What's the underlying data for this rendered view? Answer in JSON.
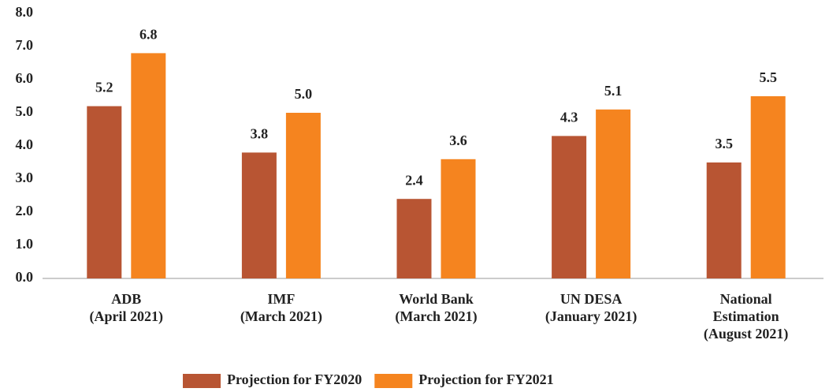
{
  "chart_data": {
    "type": "bar",
    "categories": [
      "ADB\n(April 2021)",
      "IMF\n(March 2021)",
      "World Bank\n(March 2021)",
      "UN DESA\n(January 2021)",
      "National\nEstimation\n(August 2021)"
    ],
    "series": [
      {
        "name": "Projection for FY2020",
        "color": "#b85533",
        "values": [
          5.2,
          3.8,
          2.4,
          4.3,
          3.5
        ],
        "value_labels": [
          "5.2",
          "3.8",
          "2.4",
          "4.3",
          "3.5"
        ]
      },
      {
        "name": "Projection for FY2021",
        "color": "#f5841f",
        "values": [
          6.8,
          5.0,
          3.6,
          5.1,
          5.5
        ],
        "value_labels": [
          "6.8",
          "5.0",
          "3.6",
          "5.1",
          "5.5"
        ]
      }
    ],
    "ylim": [
      0,
      8
    ],
    "yticks": [
      {
        "value": 0,
        "label": "0.0"
      },
      {
        "value": 1,
        "label": "1.0"
      },
      {
        "value": 2,
        "label": "2.0"
      },
      {
        "value": 3,
        "label": "3.0"
      },
      {
        "value": 4,
        "label": "4.0"
      },
      {
        "value": 5,
        "label": "5.0"
      },
      {
        "value": 6,
        "label": "6.0"
      },
      {
        "value": 7,
        "label": "7.0"
      },
      {
        "value": 8,
        "label": "8.0"
      }
    ],
    "grid": false,
    "legend": "bottom"
  }
}
